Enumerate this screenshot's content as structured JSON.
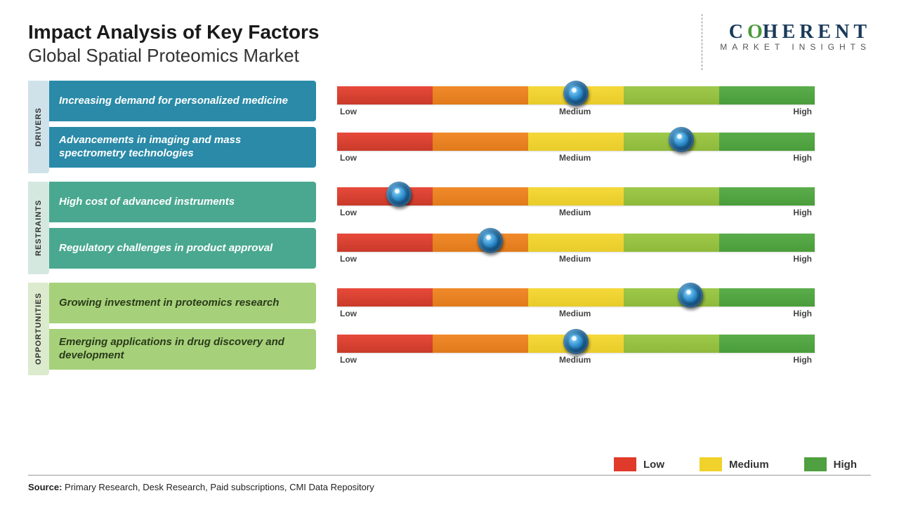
{
  "header": {
    "title": "Impact Analysis of Key Factors",
    "subtitle": "Global Spatial Proteomics Market"
  },
  "logo": {
    "line1_pre": "C",
    "line1_o": "O",
    "line1_post": "HERENT",
    "line2": "MARKET INSIGHTS"
  },
  "gauge": {
    "labels": {
      "low": "Low",
      "medium": "Medium",
      "high": "High"
    },
    "segments": [
      "red",
      "orange",
      "yellow",
      "lightgreen",
      "green"
    ],
    "colors": {
      "red": "#e03a2a",
      "orange": "#ee7f1a",
      "yellow": "#f0d22a",
      "lightgreen": "#92c042",
      "green": "#4ea040"
    }
  },
  "categories": [
    {
      "name": "DRIVERS",
      "label_bg": "#cfe2ea",
      "box_bg": "#2a8aa8",
      "box_fg": "#ffffff",
      "rows": [
        {
          "factor": "Increasing demand for personalized medicine",
          "marker_pct": 50
        },
        {
          "factor": "Advancements in imaging and mass spectrometry technologies",
          "marker_pct": 72
        }
      ]
    },
    {
      "name": "RESTRAINTS",
      "label_bg": "#d4e8e0",
      "box_bg": "#4aa890",
      "box_fg": "#ffffff",
      "rows": [
        {
          "factor": "High cost of advanced instruments",
          "marker_pct": 13
        },
        {
          "factor": "Regulatory challenges in product approval",
          "marker_pct": 32
        }
      ]
    },
    {
      "name": "OPPORTUNITIES",
      "label_bg": "#dceacd",
      "box_bg": "#a6d17a",
      "box_fg": "#2a3a1a",
      "rows": [
        {
          "factor": "Growing investment in proteomics research",
          "marker_pct": 74
        },
        {
          "factor": "Emerging applications in drug discovery and development",
          "marker_pct": 50
        }
      ]
    }
  ],
  "legend": [
    {
      "label": "Low",
      "color": "#e03a2a"
    },
    {
      "label": "Medium",
      "color": "#f0d22a"
    },
    {
      "label": "High",
      "color": "#4ea040"
    }
  ],
  "source": {
    "label": "Source:",
    "text": " Primary Research, Desk Research, Paid subscriptions, CMI Data Repository"
  }
}
